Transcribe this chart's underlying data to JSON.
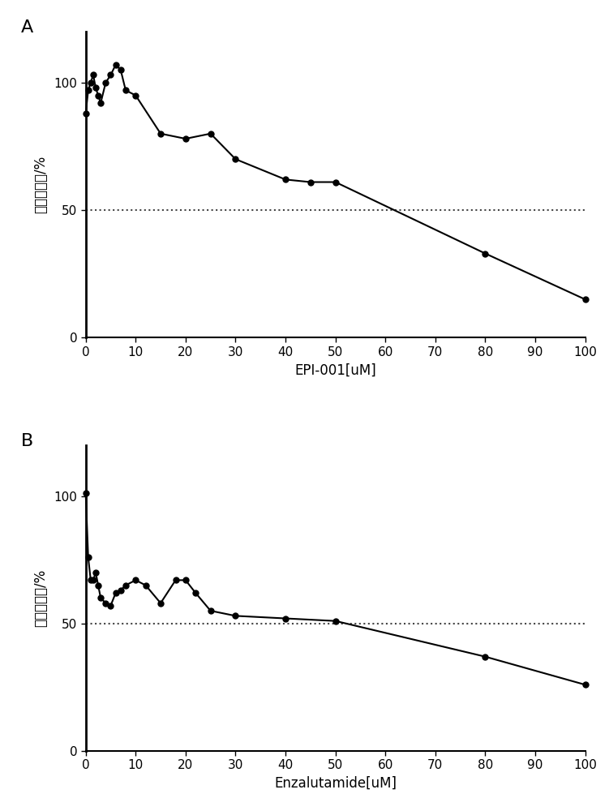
{
  "panel_A": {
    "label": "A",
    "x": [
      0,
      0.5,
      1,
      1.5,
      2,
      2.5,
      3,
      4,
      5,
      6,
      7,
      8,
      10,
      15,
      20,
      25,
      30,
      40,
      45,
      50,
      80,
      100
    ],
    "y": [
      88,
      97,
      100,
      103,
      98,
      95,
      92,
      100,
      103,
      107,
      105,
      97,
      95,
      80,
      78,
      80,
      70,
      62,
      61,
      61,
      33,
      15
    ],
    "xlabel": "EPI-001[uM]",
    "ylabel": "细胞存活率/%",
    "xlim": [
      0,
      100
    ],
    "ylim": [
      0,
      120
    ],
    "yticks": [
      0,
      50,
      100
    ],
    "xticks": [
      0,
      10,
      20,
      30,
      40,
      50,
      60,
      70,
      80,
      90,
      100
    ],
    "hline_y": 50
  },
  "panel_B": {
    "label": "B",
    "x": [
      0,
      0.5,
      1,
      1.5,
      2,
      2.5,
      3,
      4,
      5,
      6,
      7,
      8,
      10,
      12,
      15,
      18,
      20,
      22,
      25,
      30,
      40,
      50,
      80,
      100
    ],
    "y": [
      101,
      76,
      67,
      67,
      70,
      65,
      60,
      58,
      57,
      62,
      63,
      65,
      67,
      65,
      58,
      67,
      67,
      62,
      55,
      53,
      52,
      51,
      37,
      26
    ],
    "xlabel": "Enzalutamide[uM]",
    "ylabel": "细胞存活率/%",
    "xlim": [
      0,
      100
    ],
    "ylim": [
      0,
      120
    ],
    "yticks": [
      0,
      50,
      100
    ],
    "xticks": [
      0,
      10,
      20,
      30,
      40,
      50,
      60,
      70,
      80,
      90,
      100
    ],
    "hline_y": 50
  },
  "line_color": "#000000",
  "marker": "o",
  "marker_size": 5,
  "line_width": 1.5,
  "dashed_line_color": "#444444",
  "background_color": "#ffffff",
  "label_fontsize": 16,
  "tick_fontsize": 11,
  "axis_label_fontsize": 12
}
